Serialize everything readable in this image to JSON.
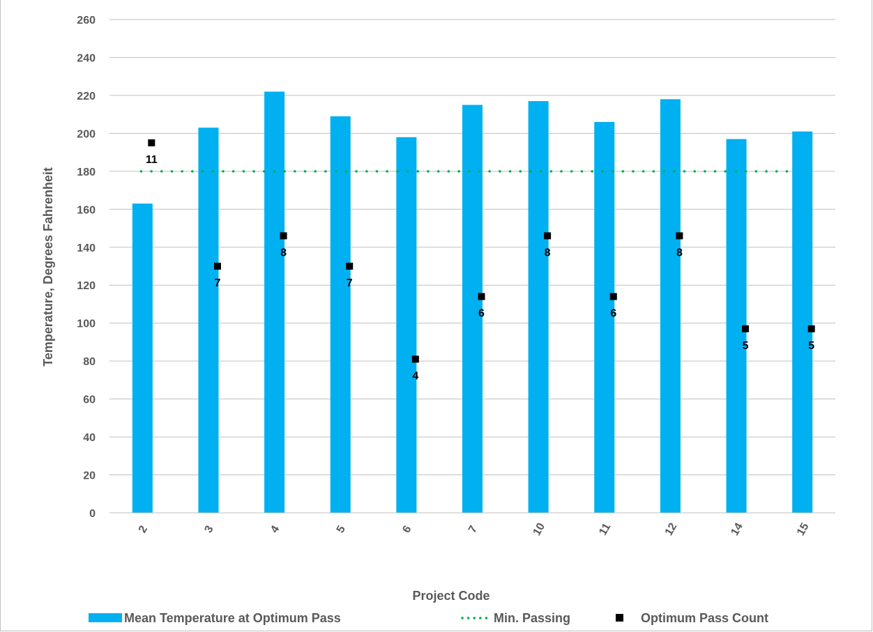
{
  "colors": {
    "bar": "#00b0f0",
    "min_line": "#00b050",
    "marker": "#000000",
    "grid": "#bfbfbf",
    "text": "#595959"
  },
  "chart_data": {
    "type": "bar",
    "xlabel": "Project Code",
    "ylabel": "Temperature, Degrees Fahrenheit",
    "ylim": [
      0,
      260
    ],
    "ytick_step": 20,
    "grid": true,
    "legend_position": "bottom",
    "categories": [
      "2",
      "3",
      "4",
      "5",
      "6",
      "7",
      "10",
      "11",
      "12",
      "14",
      "15"
    ],
    "series": [
      {
        "name": "Mean Temperature at Optimum Pass",
        "kind": "bar",
        "values": [
          163,
          203,
          222,
          209,
          198,
          215,
          217,
          206,
          218,
          197,
          201
        ]
      },
      {
        "name": "Min. Passing",
        "kind": "line",
        "style": "dotted",
        "values": [
          180,
          180,
          180,
          180,
          180,
          180,
          180,
          180,
          180,
          180,
          180
        ]
      },
      {
        "name": "Optimum Pass Count",
        "kind": "scatter",
        "marker": "square",
        "values": [
          195,
          130,
          146,
          130,
          81,
          114,
          146,
          114,
          146,
          97,
          97
        ],
        "labels": [
          "11",
          "7",
          "8",
          "7",
          "4",
          "6",
          "8",
          "6",
          "8",
          "5",
          "5"
        ]
      }
    ]
  }
}
